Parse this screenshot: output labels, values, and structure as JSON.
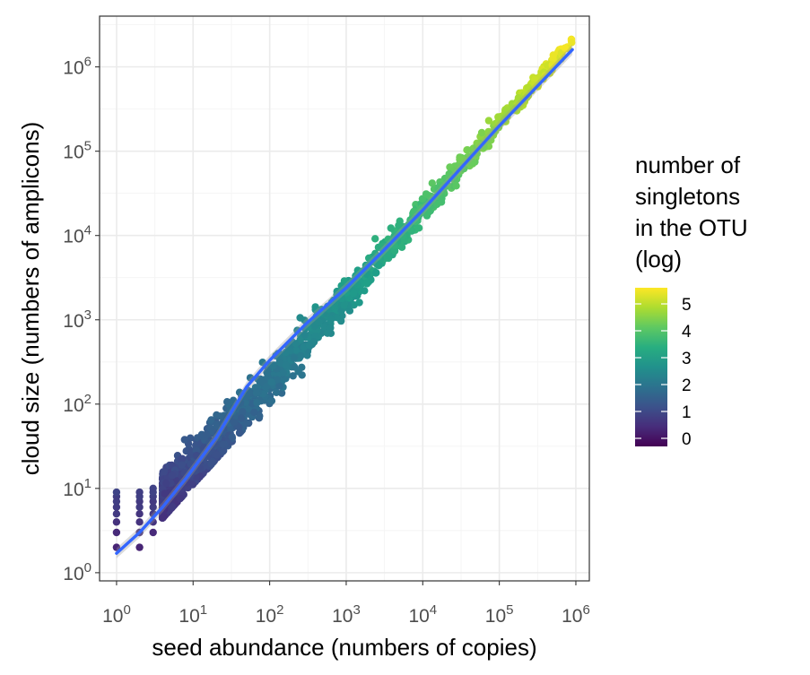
{
  "chart_data": {
    "type": "scatter",
    "title": "",
    "xlabel": "seed abundance (numbers of copies)",
    "ylabel": "cloud size (numbers of amplicons)",
    "x_scale": "log10",
    "y_scale": "log10",
    "xlim": [
      0.6,
      1500000
    ],
    "ylim": [
      0.8,
      4000000
    ],
    "x_ticks": [
      {
        "base": "10",
        "exp": "0",
        "value": 1
      },
      {
        "base": "10",
        "exp": "1",
        "value": 10
      },
      {
        "base": "10",
        "exp": "2",
        "value": 100
      },
      {
        "base": "10",
        "exp": "3",
        "value": 1000
      },
      {
        "base": "10",
        "exp": "4",
        "value": 10000
      },
      {
        "base": "10",
        "exp": "5",
        "value": 100000
      },
      {
        "base": "10",
        "exp": "6",
        "value": 1000000
      }
    ],
    "y_ticks": [
      {
        "base": "10",
        "exp": "0",
        "value": 1
      },
      {
        "base": "10",
        "exp": "1",
        "value": 10
      },
      {
        "base": "10",
        "exp": "2",
        "value": 100
      },
      {
        "base": "10",
        "exp": "3",
        "value": 1000
      },
      {
        "base": "10",
        "exp": "4",
        "value": 10000
      },
      {
        "base": "10",
        "exp": "5",
        "value": 100000
      },
      {
        "base": "10",
        "exp": "6",
        "value": 1000000
      }
    ],
    "grid": true,
    "colorbar": {
      "title_lines": [
        "number of",
        "singletons",
        "in the OTU",
        "(log)"
      ],
      "range": [
        -0.3,
        5.6
      ],
      "ticks": [
        {
          "value": 5,
          "label": "5"
        },
        {
          "value": 4,
          "label": "4"
        },
        {
          "value": 3,
          "label": "3"
        },
        {
          "value": 2,
          "label": "2"
        },
        {
          "value": 1,
          "label": "1"
        },
        {
          "value": 0,
          "label": "0"
        }
      ],
      "colormap": "viridis",
      "placement": "right"
    },
    "trend_line": {
      "color": "#3366FF",
      "points": [
        [
          1,
          1.7
        ],
        [
          2,
          3
        ],
        [
          4,
          6
        ],
        [
          8,
          13
        ],
        [
          20,
          40
        ],
        [
          50,
          160
        ],
        [
          100,
          330
        ],
        [
          300,
          900
        ],
        [
          1000,
          2400
        ],
        [
          3000,
          6500
        ],
        [
          10000,
          20000
        ],
        [
          100000,
          200000
        ],
        [
          900000,
          1600000
        ]
      ]
    },
    "point_density": [
      {
        "x": 1,
        "y_min": 2,
        "y_max": 9,
        "density": "high"
      },
      {
        "x": 2,
        "y_min": 2,
        "y_max": 9,
        "density": "high"
      },
      {
        "x": 3,
        "y_min": 3,
        "y_max": 10,
        "density": "high"
      },
      {
        "x": 10,
        "y_min": 8,
        "y_max": 100,
        "density": "high"
      },
      {
        "x": 100,
        "y_min": 90,
        "y_max": 1500,
        "density": "high"
      },
      {
        "x": 1000,
        "y_min": 700,
        "y_max": 6000,
        "density": "medium"
      },
      {
        "x": 10000,
        "y_min": 8000,
        "y_max": 30000,
        "density": "low"
      },
      {
        "x": 100000,
        "y_min": 100000,
        "y_max": 400000,
        "density": "sparse"
      },
      {
        "x": 1000000,
        "y_min": 800000,
        "y_max": 1900000,
        "density": "sparse"
      }
    ]
  }
}
